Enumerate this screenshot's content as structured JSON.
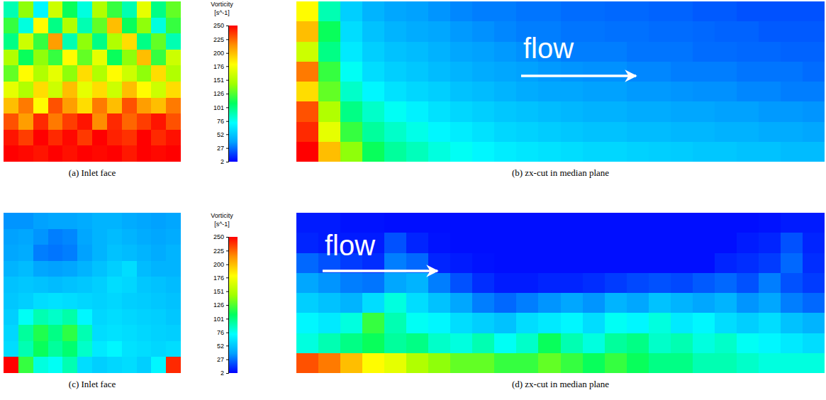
{
  "chart_data": [
    {
      "type": "heatmap",
      "title": "(a) Inlet face",
      "tick_labels": false,
      "colorbar": {
        "title": [
          "Vorticity",
          "[s^-1]"
        ],
        "range": [
          2,
          250
        ],
        "ticks": [
          2,
          27,
          52,
          76,
          101,
          126,
          151,
          176,
          200,
          225,
          250
        ]
      },
      "cells": [
        [
          90,
          140,
          70,
          160,
          110,
          80,
          150,
          120,
          90,
          170,
          100,
          130
        ],
        [
          120,
          80,
          180,
          100,
          150,
          90,
          130,
          200,
          110,
          140,
          80,
          120
        ],
        [
          100,
          160,
          120,
          210,
          90,
          140,
          100,
          150,
          190,
          100,
          130,
          90
        ],
        [
          150,
          110,
          140,
          120,
          180,
          130,
          170,
          110,
          140,
          200,
          120,
          160
        ],
        [
          130,
          180,
          150,
          170,
          140,
          190,
          150,
          180,
          160,
          140,
          190,
          150
        ],
        [
          170,
          150,
          190,
          160,
          200,
          170,
          190,
          160,
          200,
          180,
          160,
          190
        ],
        [
          200,
          220,
          180,
          230,
          210,
          190,
          220,
          200,
          230,
          210,
          200,
          220
        ],
        [
          230,
          210,
          240,
          220,
          235,
          245,
          215,
          240,
          225,
          235,
          245,
          230
        ],
        [
          245,
          235,
          250,
          240,
          248,
          236,
          250,
          242,
          238,
          250,
          240,
          246
        ],
        [
          250,
          248,
          245,
          250,
          246,
          250,
          248,
          250,
          244,
          250,
          248,
          250
        ]
      ]
    },
    {
      "type": "heatmap",
      "title": "(b) zx-cut in median plane",
      "tick_labels": false,
      "annotation": "flow",
      "cells": [
        [
          180,
          90,
          55,
          45,
          40,
          38,
          35,
          32,
          30,
          30,
          28,
          28,
          26,
          26,
          25,
          25,
          24,
          24,
          22,
          22,
          20,
          20,
          20,
          20
        ],
        [
          200,
          110,
          60,
          50,
          45,
          42,
          40,
          36,
          34,
          32,
          30,
          30,
          28,
          28,
          27,
          27,
          26,
          26,
          25,
          24,
          24,
          22,
          22,
          22
        ],
        [
          160,
          100,
          65,
          55,
          50,
          48,
          44,
          40,
          38,
          36,
          34,
          32,
          30,
          30,
          30,
          28,
          28,
          28,
          26,
          26,
          25,
          25,
          24,
          24
        ],
        [
          220,
          120,
          75,
          60,
          55,
          52,
          48,
          45,
          42,
          40,
          38,
          36,
          35,
          34,
          34,
          32,
          32,
          30,
          30,
          30,
          28,
          28,
          28,
          26
        ],
        [
          190,
          130,
          85,
          70,
          62,
          58,
          55,
          50,
          48,
          45,
          42,
          40,
          40,
          38,
          38,
          36,
          36,
          35,
          34,
          34,
          32,
          32,
          30,
          30
        ],
        [
          230,
          150,
          100,
          85,
          75,
          68,
          62,
          58,
          55,
          52,
          50,
          48,
          46,
          44,
          44,
          42,
          42,
          40,
          40,
          38,
          38,
          36,
          36,
          35
        ],
        [
          240,
          170,
          120,
          95,
          85,
          78,
          70,
          66,
          62,
          58,
          56,
          54,
          52,
          50,
          50,
          48,
          48,
          46,
          46,
          44,
          44,
          42,
          42,
          40
        ],
        [
          250,
          200,
          140,
          110,
          95,
          88,
          80,
          75,
          70,
          66,
          64,
          62,
          60,
          58,
          58,
          56,
          55,
          54,
          52,
          52,
          50,
          50,
          48,
          48
        ]
      ]
    },
    {
      "type": "heatmap",
      "title": "(c) Inlet face",
      "tick_labels": false,
      "colorbar": {
        "title": [
          "Vorticity",
          "[s^-1]"
        ],
        "range": [
          2,
          250
        ],
        "ticks": [
          2,
          27,
          52,
          76,
          101,
          126,
          151,
          176,
          200,
          225,
          250
        ]
      },
      "cells": [
        [
          35,
          35,
          38,
          40,
          40,
          42,
          45,
          45,
          42,
          40,
          38,
          40
        ],
        [
          38,
          40,
          35,
          30,
          32,
          40,
          45,
          48,
          45,
          42,
          40,
          42
        ],
        [
          40,
          42,
          30,
          28,
          30,
          38,
          45,
          50,
          48,
          45,
          42,
          45
        ],
        [
          45,
          48,
          40,
          38,
          40,
          45,
          50,
          55,
          60,
          48,
          45,
          45
        ],
        [
          50,
          52,
          50,
          48,
          50,
          52,
          55,
          60,
          58,
          52,
          50,
          48
        ],
        [
          52,
          55,
          60,
          62,
          60,
          58,
          56,
          58,
          55,
          54,
          52,
          50
        ],
        [
          55,
          75,
          90,
          85,
          92,
          70,
          58,
          60,
          58,
          56,
          55,
          52
        ],
        [
          58,
          95,
          115,
          100,
          118,
          90,
          60,
          62,
          60,
          58,
          56,
          55
        ],
        [
          60,
          90,
          110,
          95,
          105,
          85,
          65,
          70,
          62,
          60,
          58,
          60
        ],
        [
          250,
          120,
          80,
          75,
          90,
          60,
          55,
          58,
          60,
          55,
          70,
          240
        ]
      ]
    },
    {
      "type": "heatmap",
      "title": "(d) zx-cut in median plane",
      "tick_labels": false,
      "annotation": "flow",
      "cells": [
        [
          8,
          8,
          6,
          6,
          5,
          5,
          5,
          5,
          5,
          5,
          5,
          5,
          5,
          5,
          5,
          5,
          5,
          5,
          5,
          5,
          5,
          6,
          8,
          8
        ],
        [
          10,
          8,
          8,
          8,
          20,
          10,
          6,
          5,
          5,
          5,
          5,
          5,
          5,
          5,
          5,
          5,
          5,
          5,
          5,
          5,
          8,
          10,
          20,
          10
        ],
        [
          25,
          20,
          15,
          12,
          30,
          25,
          10,
          8,
          6,
          5,
          5,
          5,
          5,
          5,
          5,
          5,
          5,
          5,
          5,
          10,
          12,
          15,
          25,
          12
        ],
        [
          40,
          35,
          30,
          28,
          40,
          45,
          30,
          20,
          12,
          8,
          8,
          10,
          10,
          12,
          15,
          18,
          20,
          18,
          22,
          25,
          20,
          30,
          20,
          15
        ],
        [
          55,
          50,
          45,
          60,
          80,
          60,
          50,
          40,
          30,
          25,
          30,
          35,
          40,
          35,
          45,
          40,
          50,
          45,
          40,
          45,
          35,
          40,
          30,
          25
        ],
        [
          70,
          65,
          80,
          120,
          90,
          75,
          70,
          60,
          55,
          50,
          60,
          65,
          70,
          60,
          75,
          70,
          80,
          65,
          70,
          60,
          55,
          60,
          50,
          45
        ],
        [
          80,
          90,
          100,
          110,
          95,
          100,
          85,
          80,
          90,
          75,
          85,
          110,
          90,
          80,
          95,
          100,
          85,
          90,
          80,
          85,
          75,
          70,
          65,
          60
        ],
        [
          230,
          220,
          200,
          180,
          170,
          150,
          140,
          130,
          130,
          120,
          120,
          130,
          120,
          110,
          120,
          110,
          100,
          100,
          90,
          90,
          85,
          80,
          80,
          80
        ]
      ]
    }
  ]
}
